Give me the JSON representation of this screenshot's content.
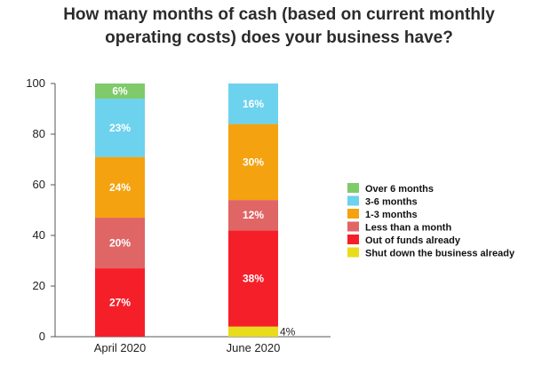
{
  "chart_data": {
    "type": "bar",
    "stacked": true,
    "title_lines": [
      "How many months of cash (based on current monthly",
      "operating costs) does your business have?"
    ],
    "categories": [
      "April 2020",
      "June 2020"
    ],
    "ylim": [
      0,
      100
    ],
    "yticks": [
      0,
      20,
      40,
      60,
      80,
      100
    ],
    "series": [
      {
        "name": "Shut down the business already",
        "color": "#e8dc1c",
        "values": [
          0,
          4
        ],
        "labels": [
          "",
          "4%"
        ]
      },
      {
        "name": "Out of funds already",
        "color": "#f51f2a",
        "values": [
          27,
          38
        ],
        "labels": [
          "27%",
          "38%"
        ]
      },
      {
        "name": "Less than a month",
        "color": "#e06666",
        "values": [
          20,
          12
        ],
        "labels": [
          "20%",
          "12%"
        ]
      },
      {
        "name": "1-3 months",
        "color": "#f4a20f",
        "values": [
          24,
          30
        ],
        "labels": [
          "24%",
          "30%"
        ]
      },
      {
        "name": "3-6 months",
        "color": "#6cd2ee",
        "values": [
          23,
          16
        ],
        "labels": [
          "23%",
          "16%"
        ]
      },
      {
        "name": "Over 6 months",
        "color": "#7fca6a",
        "values": [
          6,
          0
        ],
        "labels": [
          "6%",
          ""
        ]
      }
    ],
    "legend_order": [
      "Over 6 months",
      "3-6 months",
      "1-3 months",
      "Less than a month",
      "Out of funds already",
      "Shut down the business already"
    ],
    "legend_position": "right",
    "grid": false
  }
}
